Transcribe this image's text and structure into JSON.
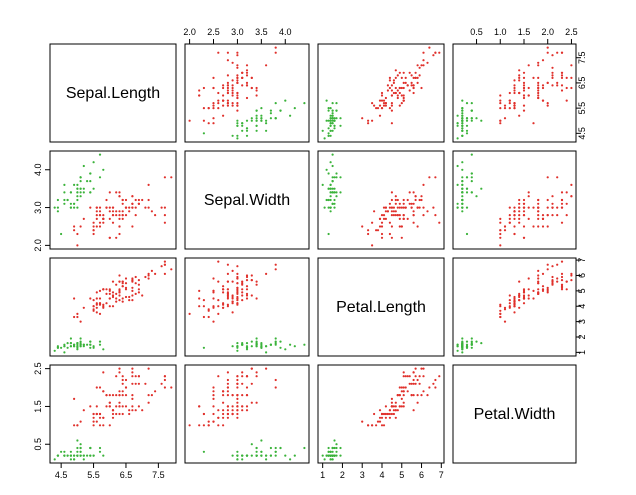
{
  "chart_data": {
    "type": "scatter",
    "variables": [
      "Sepal.Length",
      "Sepal.Width",
      "Petal.Length",
      "Petal.Width"
    ],
    "ranges": [
      [
        4.3,
        7.9
      ],
      [
        2.0,
        4.4
      ],
      [
        1.0,
        6.9
      ],
      [
        0.1,
        2.5
      ]
    ],
    "ticks": [
      [
        "4.5",
        "5.5",
        "6.5",
        "7.5"
      ],
      [
        "2.0",
        "2.5",
        "3.0",
        "3.5",
        "4.0"
      ],
      [
        "1",
        "2",
        "3",
        "4",
        "5",
        "6",
        "7"
      ],
      [
        "0.5",
        "1.0",
        "1.5",
        "2.0",
        "2.5"
      ]
    ],
    "left_axis_ticks": {
      "Sepal.Width": [
        "2.0",
        "3.0",
        "4.0"
      ],
      "Petal.Width": [
        "0.5",
        "1.5",
        "2.5"
      ]
    },
    "series": [
      {
        "color": "#3bb33b",
        "points": [
          [
            5.1,
            3.5,
            1.4,
            0.2
          ],
          [
            4.9,
            3.0,
            1.4,
            0.2
          ],
          [
            4.7,
            3.2,
            1.3,
            0.2
          ],
          [
            4.6,
            3.1,
            1.5,
            0.2
          ],
          [
            5.0,
            3.6,
            1.4,
            0.2
          ],
          [
            5.4,
            3.9,
            1.7,
            0.4
          ],
          [
            4.6,
            3.4,
            1.4,
            0.3
          ],
          [
            5.0,
            3.4,
            1.5,
            0.2
          ],
          [
            4.4,
            2.9,
            1.4,
            0.2
          ],
          [
            4.9,
            3.1,
            1.5,
            0.1
          ],
          [
            5.4,
            3.7,
            1.5,
            0.2
          ],
          [
            4.8,
            3.4,
            1.6,
            0.2
          ],
          [
            4.8,
            3.0,
            1.4,
            0.1
          ],
          [
            4.3,
            3.0,
            1.1,
            0.1
          ],
          [
            5.8,
            4.0,
            1.2,
            0.2
          ],
          [
            5.7,
            4.4,
            1.5,
            0.4
          ],
          [
            5.4,
            3.9,
            1.3,
            0.4
          ],
          [
            5.1,
            3.5,
            1.4,
            0.3
          ],
          [
            5.7,
            3.8,
            1.7,
            0.3
          ],
          [
            5.1,
            3.8,
            1.5,
            0.3
          ],
          [
            5.4,
            3.4,
            1.7,
            0.2
          ],
          [
            5.1,
            3.7,
            1.5,
            0.4
          ],
          [
            4.6,
            3.6,
            1.0,
            0.2
          ],
          [
            5.1,
            3.3,
            1.7,
            0.5
          ],
          [
            4.8,
            3.4,
            1.9,
            0.2
          ],
          [
            5.0,
            3.0,
            1.6,
            0.2
          ],
          [
            5.0,
            3.4,
            1.6,
            0.4
          ],
          [
            5.2,
            3.5,
            1.5,
            0.2
          ],
          [
            5.2,
            3.4,
            1.4,
            0.2
          ],
          [
            4.7,
            3.2,
            1.6,
            0.2
          ],
          [
            4.8,
            3.1,
            1.6,
            0.2
          ],
          [
            5.4,
            3.4,
            1.5,
            0.4
          ],
          [
            5.2,
            4.1,
            1.5,
            0.1
          ],
          [
            5.5,
            4.2,
            1.4,
            0.2
          ],
          [
            4.9,
            3.1,
            1.5,
            0.2
          ],
          [
            5.0,
            3.2,
            1.2,
            0.2
          ],
          [
            5.5,
            3.5,
            1.3,
            0.2
          ],
          [
            4.9,
            3.6,
            1.4,
            0.1
          ],
          [
            4.4,
            3.0,
            1.3,
            0.2
          ],
          [
            5.1,
            3.4,
            1.5,
            0.2
          ],
          [
            5.0,
            3.5,
            1.3,
            0.3
          ],
          [
            4.5,
            2.3,
            1.3,
            0.3
          ],
          [
            4.4,
            3.2,
            1.3,
            0.2
          ],
          [
            5.0,
            3.5,
            1.6,
            0.6
          ],
          [
            5.1,
            3.8,
            1.9,
            0.4
          ],
          [
            4.8,
            3.0,
            1.4,
            0.3
          ],
          [
            5.1,
            3.8,
            1.6,
            0.2
          ],
          [
            4.6,
            3.2,
            1.4,
            0.2
          ],
          [
            5.3,
            3.7,
            1.5,
            0.2
          ],
          [
            5.0,
            3.3,
            1.4,
            0.2
          ]
        ]
      },
      {
        "color": "#e0302b",
        "points": [
          [
            7.0,
            3.2,
            4.7,
            1.4
          ],
          [
            6.4,
            3.2,
            4.5,
            1.5
          ],
          [
            6.9,
            3.1,
            4.9,
            1.5
          ],
          [
            5.5,
            2.3,
            4.0,
            1.3
          ],
          [
            6.5,
            2.8,
            4.6,
            1.5
          ],
          [
            5.7,
            2.8,
            4.5,
            1.3
          ],
          [
            6.3,
            3.3,
            4.7,
            1.6
          ],
          [
            4.9,
            2.4,
            3.3,
            1.0
          ],
          [
            6.6,
            2.9,
            4.6,
            1.3
          ],
          [
            5.2,
            2.7,
            3.9,
            1.4
          ],
          [
            5.0,
            2.0,
            3.5,
            1.0
          ],
          [
            5.9,
            3.0,
            4.2,
            1.5
          ],
          [
            6.0,
            2.2,
            4.0,
            1.0
          ],
          [
            6.1,
            2.9,
            4.7,
            1.4
          ],
          [
            5.6,
            2.9,
            3.6,
            1.3
          ],
          [
            6.7,
            3.1,
            4.4,
            1.4
          ],
          [
            5.6,
            3.0,
            4.5,
            1.5
          ],
          [
            5.8,
            2.7,
            4.1,
            1.0
          ],
          [
            6.2,
            2.2,
            4.5,
            1.5
          ],
          [
            5.6,
            2.5,
            3.9,
            1.1
          ],
          [
            5.9,
            3.2,
            4.8,
            1.8
          ],
          [
            6.1,
            2.8,
            4.0,
            1.3
          ],
          [
            6.3,
            2.5,
            4.9,
            1.5
          ],
          [
            6.1,
            2.8,
            4.7,
            1.2
          ],
          [
            6.4,
            2.9,
            4.3,
            1.3
          ],
          [
            6.6,
            3.0,
            4.4,
            1.4
          ],
          [
            6.8,
            2.8,
            4.8,
            1.4
          ],
          [
            6.7,
            3.0,
            5.0,
            1.7
          ],
          [
            6.0,
            2.9,
            4.5,
            1.5
          ],
          [
            5.7,
            2.6,
            3.5,
            1.0
          ],
          [
            5.5,
            2.4,
            3.8,
            1.1
          ],
          [
            5.5,
            2.4,
            3.7,
            1.0
          ],
          [
            5.8,
            2.7,
            3.9,
            1.2
          ],
          [
            6.0,
            2.7,
            5.1,
            1.6
          ],
          [
            5.4,
            3.0,
            4.5,
            1.5
          ],
          [
            6.0,
            3.4,
            4.5,
            1.6
          ],
          [
            6.7,
            3.1,
            4.7,
            1.5
          ],
          [
            6.3,
            2.3,
            4.4,
            1.3
          ],
          [
            5.6,
            3.0,
            4.1,
            1.3
          ],
          [
            5.5,
            2.5,
            4.0,
            1.3
          ],
          [
            5.5,
            2.6,
            4.4,
            1.2
          ],
          [
            6.1,
            3.0,
            4.6,
            1.4
          ],
          [
            5.8,
            2.6,
            4.0,
            1.2
          ],
          [
            5.0,
            2.3,
            3.3,
            1.0
          ],
          [
            5.6,
            2.7,
            4.2,
            1.3
          ],
          [
            5.7,
            3.0,
            4.2,
            1.2
          ],
          [
            5.7,
            2.9,
            4.2,
            1.3
          ],
          [
            6.2,
            2.9,
            4.3,
            1.3
          ],
          [
            5.1,
            2.5,
            3.0,
            1.1
          ],
          [
            5.7,
            2.8,
            4.1,
            1.3
          ],
          [
            6.3,
            3.3,
            6.0,
            2.5
          ],
          [
            5.8,
            2.7,
            5.1,
            1.9
          ],
          [
            7.1,
            3.0,
            5.9,
            2.1
          ],
          [
            6.3,
            2.9,
            5.6,
            1.8
          ],
          [
            6.5,
            3.0,
            5.8,
            2.2
          ],
          [
            7.6,
            3.0,
            6.6,
            2.1
          ],
          [
            4.9,
            2.5,
            4.5,
            1.7
          ],
          [
            7.3,
            2.9,
            6.3,
            1.8
          ],
          [
            6.7,
            2.5,
            5.8,
            1.8
          ],
          [
            7.2,
            3.6,
            6.1,
            2.5
          ],
          [
            6.5,
            3.2,
            5.1,
            2.0
          ],
          [
            6.4,
            2.7,
            5.3,
            1.9
          ],
          [
            6.8,
            3.0,
            5.5,
            2.1
          ],
          [
            5.7,
            2.5,
            5.0,
            2.0
          ],
          [
            5.8,
            2.8,
            5.1,
            2.4
          ],
          [
            6.4,
            3.2,
            5.3,
            2.3
          ],
          [
            6.5,
            3.0,
            5.5,
            1.8
          ],
          [
            7.7,
            3.8,
            6.7,
            2.2
          ],
          [
            7.7,
            2.6,
            6.9,
            2.3
          ],
          [
            6.0,
            2.2,
            5.0,
            1.5
          ],
          [
            6.9,
            3.2,
            5.7,
            2.3
          ],
          [
            5.6,
            2.8,
            4.9,
            2.0
          ],
          [
            7.7,
            2.8,
            6.7,
            2.0
          ],
          [
            6.3,
            2.7,
            4.9,
            1.8
          ],
          [
            6.7,
            3.3,
            5.7,
            2.1
          ],
          [
            7.2,
            3.2,
            6.0,
            1.8
          ],
          [
            6.2,
            2.8,
            4.8,
            1.8
          ],
          [
            6.1,
            3.0,
            4.9,
            1.8
          ],
          [
            6.4,
            2.8,
            5.6,
            2.1
          ],
          [
            7.2,
            3.0,
            5.8,
            1.6
          ],
          [
            7.4,
            2.8,
            6.1,
            1.9
          ],
          [
            7.9,
            3.8,
            6.4,
            2.0
          ],
          [
            6.4,
            2.8,
            5.6,
            2.2
          ],
          [
            6.3,
            2.8,
            5.1,
            1.5
          ],
          [
            6.1,
            2.6,
            5.6,
            1.4
          ],
          [
            7.7,
            3.0,
            6.1,
            2.3
          ],
          [
            6.3,
            3.4,
            5.6,
            2.4
          ],
          [
            6.4,
            3.1,
            5.5,
            1.8
          ],
          [
            6.0,
            3.0,
            4.8,
            1.8
          ],
          [
            6.9,
            3.1,
            5.4,
            2.1
          ],
          [
            6.7,
            3.1,
            5.6,
            2.4
          ],
          [
            6.9,
            3.1,
            5.1,
            2.3
          ],
          [
            5.8,
            2.7,
            5.1,
            1.9
          ],
          [
            6.8,
            3.2,
            5.9,
            2.3
          ],
          [
            6.7,
            3.3,
            5.7,
            2.5
          ],
          [
            6.7,
            3.0,
            5.2,
            2.3
          ],
          [
            6.3,
            2.5,
            5.0,
            1.9
          ],
          [
            6.5,
            3.0,
            5.2,
            2.0
          ],
          [
            6.2,
            3.4,
            5.4,
            2.3
          ],
          [
            5.9,
            3.0,
            5.1,
            1.8
          ]
        ]
      }
    ]
  }
}
